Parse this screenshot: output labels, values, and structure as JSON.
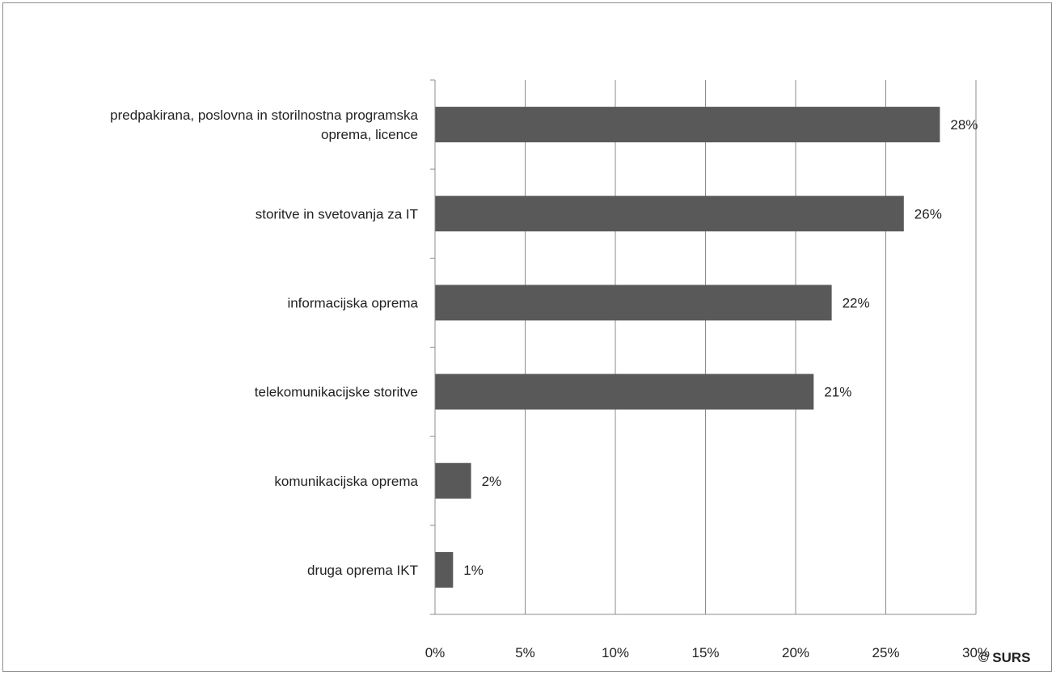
{
  "chart_data": {
    "type": "bar",
    "orientation": "horizontal",
    "categories": [
      [
        "predpakirana, poslovna in storilnostna programska",
        "oprema, licence"
      ],
      [
        "storitve in svetovanja za IT"
      ],
      [
        "informacijska oprema"
      ],
      [
        "telekomunikacijske storitve"
      ],
      [
        "komunikacijska oprema"
      ],
      [
        "druga oprema IKT"
      ]
    ],
    "values": [
      28,
      26,
      22,
      21,
      2,
      1
    ],
    "data_labels": [
      "28%",
      "26%",
      "22%",
      "21%",
      "2%",
      "1%"
    ],
    "xlim": [
      0,
      30
    ],
    "xticks": [
      0,
      5,
      10,
      15,
      20,
      25,
      30
    ],
    "xtick_labels": [
      "0%",
      "5%",
      "10%",
      "15%",
      "20%",
      "25%",
      "30%"
    ],
    "grid": "vertical",
    "bar_color": "#595959",
    "grid_color": "#8c8c8c"
  },
  "credit": "© SURS"
}
